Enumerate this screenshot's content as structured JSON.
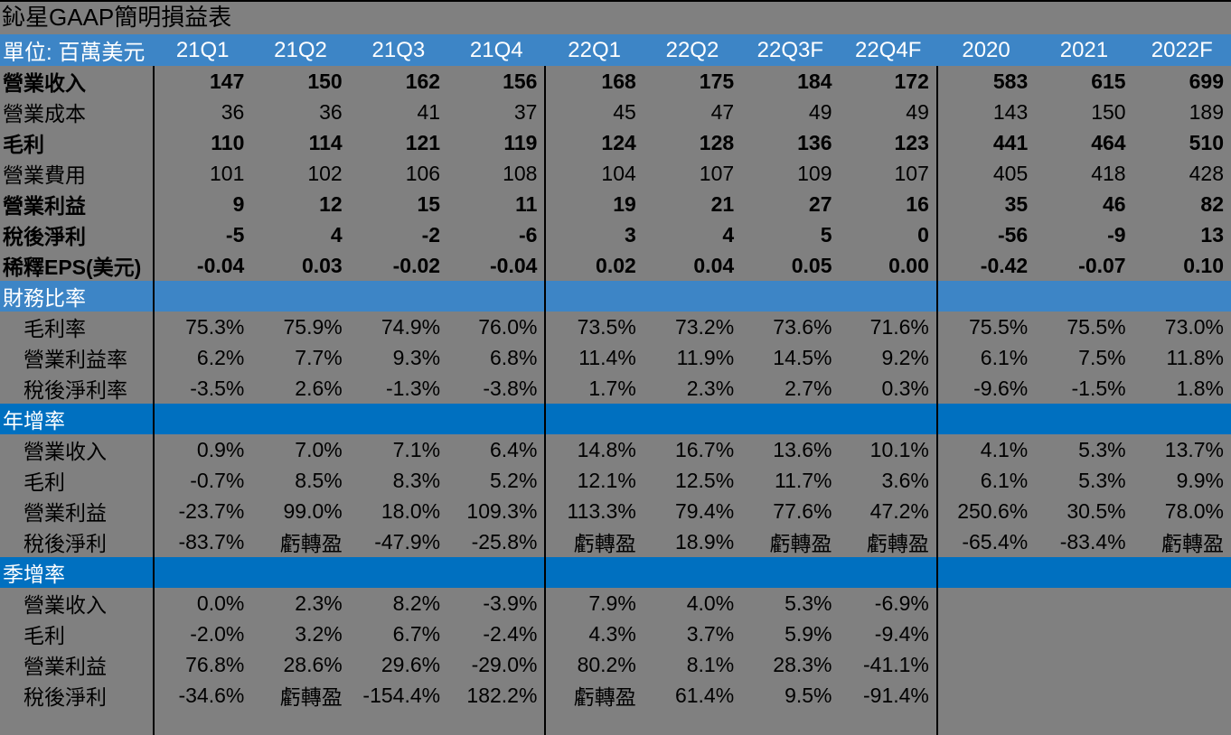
{
  "title": "鈊星GAAP簡明損益表",
  "unit_label": "單位: 百萬美元",
  "columns": [
    "21Q1",
    "21Q2",
    "21Q3",
    "21Q4",
    "22Q1",
    "22Q2",
    "22Q3F",
    "22Q4F",
    "2020",
    "2021",
    "2022F"
  ],
  "colors": {
    "background": "#808080",
    "header_blue": "#3D85C6",
    "section_band_blue": "#0070C0",
    "divider": "#000000",
    "text": "#000000",
    "header_text": "#ffffff"
  },
  "chart_data": {
    "type": "table",
    "title": "鈊星GAAP簡明損益表",
    "unit": "單位: 百萬美元",
    "columns": [
      "21Q1",
      "21Q2",
      "21Q3",
      "21Q4",
      "22Q1",
      "22Q2",
      "22Q3F",
      "22Q4F",
      "2020",
      "2021",
      "2022F"
    ],
    "rows": [
      {
        "type": "data",
        "label": "營業收入",
        "bold": true,
        "indent": false,
        "values": [
          "147",
          "150",
          "162",
          "156",
          "168",
          "175",
          "184",
          "172",
          "583",
          "615",
          "699"
        ]
      },
      {
        "type": "data",
        "label": "營業成本",
        "bold": false,
        "indent": false,
        "values": [
          "36",
          "36",
          "41",
          "37",
          "45",
          "47",
          "49",
          "49",
          "143",
          "150",
          "189"
        ]
      },
      {
        "type": "data",
        "label": "毛利",
        "bold": true,
        "indent": false,
        "values": [
          "110",
          "114",
          "121",
          "119",
          "124",
          "128",
          "136",
          "123",
          "441",
          "464",
          "510"
        ]
      },
      {
        "type": "data",
        "label": "營業費用",
        "bold": false,
        "indent": false,
        "values": [
          "101",
          "102",
          "106",
          "108",
          "104",
          "107",
          "109",
          "107",
          "405",
          "418",
          "428"
        ]
      },
      {
        "type": "data",
        "label": "營業利益",
        "bold": true,
        "indent": false,
        "values": [
          "9",
          "12",
          "15",
          "11",
          "19",
          "21",
          "27",
          "16",
          "35",
          "46",
          "82"
        ]
      },
      {
        "type": "data",
        "label": "稅後淨利",
        "bold": true,
        "indent": false,
        "values": [
          "-5",
          "4",
          "-2",
          "-6",
          "3",
          "4",
          "5",
          "0",
          "-56",
          "-9",
          "13"
        ]
      },
      {
        "type": "data",
        "label": "稀釋EPS(美元)",
        "bold": true,
        "indent": false,
        "values": [
          "-0.04",
          "0.03",
          "-0.02",
          "-0.04",
          "0.02",
          "0.04",
          "0.05",
          "0.00",
          "-0.42",
          "-0.07",
          "0.10"
        ]
      },
      {
        "type": "section",
        "label": "財務比率",
        "band": "light"
      },
      {
        "type": "data",
        "label": "毛利率",
        "bold": false,
        "indent": true,
        "values": [
          "75.3%",
          "75.9%",
          "74.9%",
          "76.0%",
          "73.5%",
          "73.2%",
          "73.6%",
          "71.6%",
          "75.5%",
          "75.5%",
          "73.0%"
        ]
      },
      {
        "type": "data",
        "label": "營業利益率",
        "bold": false,
        "indent": true,
        "values": [
          "6.2%",
          "7.7%",
          "9.3%",
          "6.8%",
          "11.4%",
          "11.9%",
          "14.5%",
          "9.2%",
          "6.1%",
          "7.5%",
          "11.8%"
        ]
      },
      {
        "type": "data",
        "label": "稅後淨利率",
        "bold": false,
        "indent": true,
        "values": [
          "-3.5%",
          "2.6%",
          "-1.3%",
          "-3.8%",
          "1.7%",
          "2.3%",
          "2.7%",
          "0.3%",
          "-9.6%",
          "-1.5%",
          "1.8%"
        ]
      },
      {
        "type": "section",
        "label": "年增率",
        "band": "dark"
      },
      {
        "type": "data",
        "label": "營業收入",
        "bold": false,
        "indent": true,
        "values": [
          "0.9%",
          "7.0%",
          "7.1%",
          "6.4%",
          "14.8%",
          "16.7%",
          "13.6%",
          "10.1%",
          "4.1%",
          "5.3%",
          "13.7%"
        ]
      },
      {
        "type": "data",
        "label": "毛利",
        "bold": false,
        "indent": true,
        "values": [
          "-0.7%",
          "8.5%",
          "8.3%",
          "5.2%",
          "12.1%",
          "12.5%",
          "11.7%",
          "3.6%",
          "6.1%",
          "5.3%",
          "9.9%"
        ]
      },
      {
        "type": "data",
        "label": "營業利益",
        "bold": false,
        "indent": true,
        "values": [
          "-23.7%",
          "99.0%",
          "18.0%",
          "109.3%",
          "113.3%",
          "79.4%",
          "77.6%",
          "47.2%",
          "250.6%",
          "30.5%",
          "78.0%"
        ]
      },
      {
        "type": "data",
        "label": "稅後淨利",
        "bold": false,
        "indent": true,
        "values": [
          "-83.7%",
          "虧轉盈",
          "-47.9%",
          "-25.8%",
          "虧轉盈",
          "18.9%",
          "虧轉盈",
          "虧轉盈",
          "-65.4%",
          "-83.4%",
          "虧轉盈"
        ]
      },
      {
        "type": "section",
        "label": "季增率",
        "band": "dark"
      },
      {
        "type": "data",
        "label": "營業收入",
        "bold": false,
        "indent": true,
        "values": [
          "0.0%",
          "2.3%",
          "8.2%",
          "-3.9%",
          "7.9%",
          "4.0%",
          "5.3%",
          "-6.9%",
          "",
          "",
          ""
        ]
      },
      {
        "type": "data",
        "label": "毛利",
        "bold": false,
        "indent": true,
        "values": [
          "-2.0%",
          "3.2%",
          "6.7%",
          "-2.4%",
          "4.3%",
          "3.7%",
          "5.9%",
          "-9.4%",
          "",
          "",
          ""
        ]
      },
      {
        "type": "data",
        "label": "營業利益",
        "bold": false,
        "indent": true,
        "values": [
          "76.8%",
          "28.6%",
          "29.6%",
          "-29.0%",
          "80.2%",
          "8.1%",
          "28.3%",
          "-41.1%",
          "",
          "",
          ""
        ]
      },
      {
        "type": "data",
        "label": "稅後淨利",
        "bold": false,
        "indent": true,
        "values": [
          "-34.6%",
          "虧轉盈",
          "-154.4%",
          "182.2%",
          "虧轉盈",
          "61.4%",
          "9.5%",
          "-91.4%",
          "",
          "",
          ""
        ]
      }
    ]
  }
}
